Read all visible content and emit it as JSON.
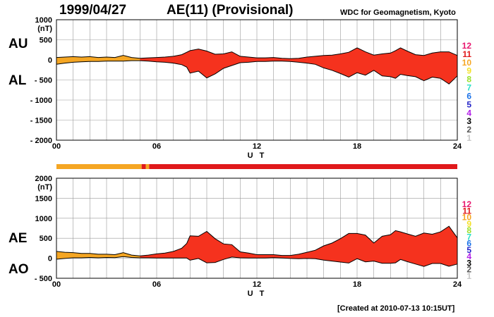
{
  "header": {
    "date": "1999/04/27",
    "title": "AE(11) (Provisional)",
    "source": "WDC for Geomagnetism, Kyoto"
  },
  "footer": {
    "created": "[Created at 2010-07-13 10:15UT]"
  },
  "colors": {
    "provisional_orange": "#f5a623",
    "provisional_red": "#f5321e",
    "curve": "#000000",
    "grid": "#999999"
  },
  "level_labels": [
    "12",
    "11",
    "10",
    "9",
    "8",
    "7",
    "6",
    "5",
    "4",
    "3",
    "2",
    "1"
  ],
  "level_colors": [
    "#e8176f",
    "#e0191b",
    "#f5a623",
    "#f5e12b",
    "#9ae02b",
    "#2be0c8",
    "#1e74e8",
    "#2424c8",
    "#b21ee8",
    "#000000",
    "#555555",
    "#c8c8c8"
  ],
  "quality_bar": {
    "segments": [
      {
        "from": 0,
        "to": 5.1,
        "level": "10"
      },
      {
        "from": 5.1,
        "to": 5.35,
        "level": "11"
      },
      {
        "from": 5.35,
        "to": 5.55,
        "level": "10"
      },
      {
        "from": 5.55,
        "to": 24,
        "level": "11"
      }
    ]
  },
  "chart_data": [
    {
      "type": "area",
      "panel": "AU-AL",
      "upper_label": "AU",
      "lower_label": "AL",
      "unit_label": "(nT)",
      "xlabel": "U T",
      "xticks": [
        "00",
        "06",
        "12",
        "18",
        "24"
      ],
      "xlim": [
        0,
        24
      ],
      "ylim": [
        -2000,
        1000
      ],
      "yticks": [
        1000,
        500,
        0,
        -500,
        -1000,
        -1500,
        -2000
      ],
      "ytick_labels": [
        "1000",
        "500",
        "0",
        "- 500",
        "- 1000",
        "- 1500",
        "- 2000"
      ],
      "grid": true,
      "color_change_hour": 5.1,
      "x": [
        0,
        0.5,
        1,
        1.5,
        2,
        2.5,
        3,
        3.5,
        4,
        4.5,
        5,
        5.5,
        6,
        6.5,
        7,
        7.5,
        7.8,
        8,
        8.5,
        9,
        9.5,
        10,
        10.5,
        11,
        11.5,
        12,
        12.5,
        13,
        13.5,
        14,
        14.5,
        15,
        15.5,
        16,
        16.5,
        17,
        17.5,
        18,
        18.5,
        19,
        19.5,
        20,
        20.3,
        20.6,
        21,
        21.5,
        22,
        22.5,
        23,
        23.5,
        24
      ],
      "series": [
        {
          "name": "AU",
          "values": [
            60,
            70,
            80,
            70,
            80,
            60,
            70,
            60,
            110,
            60,
            40,
            50,
            60,
            70,
            90,
            130,
            190,
            230,
            270,
            220,
            140,
            150,
            200,
            90,
            70,
            50,
            50,
            60,
            40,
            30,
            40,
            70,
            90,
            110,
            120,
            150,
            190,
            300,
            200,
            120,
            150,
            170,
            230,
            300,
            220,
            130,
            110,
            170,
            200,
            200,
            110
          ]
        },
        {
          "name": "AL",
          "values": [
            -110,
            -80,
            -60,
            -50,
            -40,
            -40,
            -30,
            -30,
            -30,
            -20,
            -20,
            -30,
            -50,
            -60,
            -80,
            -120,
            -180,
            -330,
            -280,
            -450,
            -350,
            -210,
            -140,
            -70,
            -60,
            -40,
            -40,
            -30,
            -30,
            -40,
            -60,
            -80,
            -110,
            -200,
            -260,
            -340,
            -430,
            -320,
            -380,
            -260,
            -400,
            -420,
            -460,
            -360,
            -390,
            -420,
            -520,
            -430,
            -460,
            -600,
            -400
          ]
        }
      ]
    },
    {
      "type": "area",
      "panel": "AE-AO",
      "upper_label": "AE",
      "lower_label": "AO",
      "unit_label": "(nT)",
      "xlabel": "U T",
      "xticks": [
        "00",
        "06",
        "12",
        "18",
        "24"
      ],
      "xlim": [
        0,
        24
      ],
      "ylim": [
        -500,
        2000
      ],
      "yticks": [
        2000,
        1500,
        1000,
        500,
        0,
        -500
      ],
      "ytick_labels": [
        "2000",
        "1500",
        "1000",
        "500",
        "0",
        "- 500"
      ],
      "grid": true,
      "color_change_hour": 5.1,
      "x": [
        0,
        0.5,
        1,
        1.5,
        2,
        2.5,
        3,
        3.5,
        4,
        4.5,
        5,
        5.5,
        6,
        6.5,
        7,
        7.5,
        7.8,
        8,
        8.5,
        9,
        9.5,
        10,
        10.5,
        11,
        11.5,
        12,
        12.5,
        13,
        13.5,
        14,
        14.5,
        15,
        15.5,
        16,
        16.5,
        17,
        17.5,
        18,
        18.5,
        19,
        19.5,
        20,
        20.3,
        20.6,
        21,
        21.5,
        22,
        22.5,
        23,
        23.5,
        24
      ],
      "series": [
        {
          "name": "AE",
          "values": [
            170,
            150,
            140,
            120,
            120,
            100,
            100,
            90,
            140,
            80,
            60,
            80,
            110,
            130,
            170,
            250,
            370,
            560,
            550,
            670,
            490,
            360,
            340,
            160,
            130,
            90,
            90,
            90,
            70,
            70,
            100,
            150,
            200,
            310,
            380,
            490,
            620,
            620,
            580,
            380,
            550,
            590,
            690,
            660,
            610,
            550,
            630,
            600,
            660,
            800,
            510
          ]
        },
        {
          "name": "AO",
          "values": [
            -25,
            -5,
            10,
            10,
            20,
            10,
            20,
            15,
            40,
            20,
            10,
            10,
            5,
            5,
            5,
            5,
            5,
            -50,
            -5,
            -115,
            -105,
            -30,
            30,
            10,
            5,
            5,
            5,
            15,
            5,
            -5,
            -10,
            -5,
            -10,
            -45,
            -70,
            -95,
            -120,
            -10,
            -90,
            -70,
            -125,
            -125,
            -115,
            -30,
            -85,
            -145,
            -205,
            -130,
            -130,
            -200,
            -145
          ]
        }
      ]
    }
  ]
}
